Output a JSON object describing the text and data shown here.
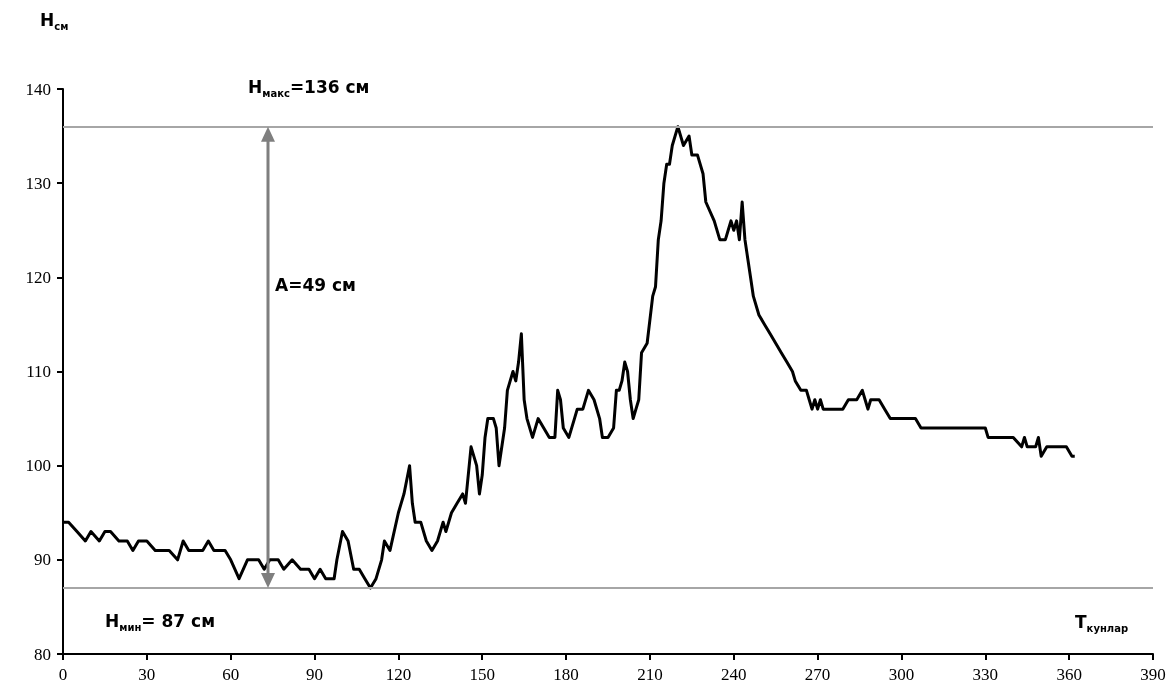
{
  "chart_data": {
    "type": "line",
    "xlabel": "T$_{кунлар}$",
    "ylabel": "H$_{см}$",
    "marker": "none",
    "grid": false,
    "xlim": [
      0,
      390
    ],
    "xticks": [
      0,
      30,
      60,
      90,
      120,
      150,
      180,
      210,
      240,
      270,
      300,
      330,
      360,
      390
    ],
    "ylim": [
      80,
      140
    ],
    "yticks": [
      80,
      90,
      100,
      110,
      120,
      130,
      140
    ],
    "ref_lines": [
      {
        "axis": "y",
        "value": 136,
        "label": "H$_{макс}$=136 см",
        "color": "#a6a6a6"
      },
      {
        "axis": "y",
        "value": 87,
        "label": "H$_{мин}$= 87 см",
        "color": "#a6a6a6"
      }
    ],
    "annotations": [
      "A=49 см"
    ],
    "series": [
      {
        "color": "#000000",
        "x": [
          0,
          2,
          5,
          8,
          10,
          13,
          15,
          17,
          20,
          23,
          25,
          27,
          30,
          33,
          38,
          41,
          43,
          45,
          50,
          52,
          54,
          58,
          60,
          63,
          66,
          70,
          72,
          74,
          77,
          79,
          82,
          85,
          88,
          90,
          92,
          94,
          97,
          98,
          100,
          102,
          104,
          106,
          108,
          110,
          112,
          114,
          115,
          117,
          120,
          122,
          124,
          125,
          126,
          128,
          130,
          132,
          134,
          136,
          137,
          139,
          141,
          143,
          144,
          145,
          146,
          148,
          149,
          150,
          151,
          152,
          154,
          155,
          156,
          158,
          159,
          160,
          161,
          162,
          163,
          164,
          165,
          166,
          168,
          170,
          172,
          174,
          176,
          177,
          178,
          179,
          181,
          183,
          184,
          186,
          188,
          190,
          192,
          193,
          195,
          197,
          198,
          199,
          200,
          201,
          202,
          203,
          204,
          205,
          206,
          207,
          209,
          211,
          212,
          213,
          214,
          215,
          216,
          217,
          218,
          220,
          222,
          224,
          225,
          227,
          229,
          230,
          233,
          235,
          237,
          238,
          239,
          240,
          241,
          242,
          243,
          244,
          245,
          246,
          247,
          249,
          251,
          253,
          255,
          257,
          259,
          261,
          262,
          264,
          266,
          267,
          268,
          269,
          270,
          271,
          272,
          275,
          279,
          281,
          284,
          286,
          287,
          288,
          289,
          292,
          294,
          296,
          305,
          307,
          330,
          331,
          340,
          343,
          344,
          345,
          348,
          349,
          350,
          352,
          359,
          361,
          362
        ],
        "values": [
          94,
          94,
          93,
          92,
          93,
          92,
          93,
          93,
          92,
          92,
          91,
          92,
          92,
          91,
          91,
          90,
          92,
          91,
          91,
          92,
          91,
          91,
          90,
          88,
          90,
          90,
          89,
          90,
          90,
          89,
          90,
          89,
          89,
          88,
          89,
          88,
          88,
          90,
          93,
          92,
          89,
          89,
          88,
          87,
          88,
          90,
          92,
          91,
          95,
          97,
          100,
          96,
          94,
          94,
          92,
          91,
          92,
          94,
          93,
          95,
          96,
          97,
          96,
          99,
          102,
          100,
          97,
          99,
          103,
          105,
          105,
          104,
          100,
          104,
          108,
          109,
          110,
          109,
          111,
          114,
          107,
          105,
          103,
          105,
          104,
          103,
          103,
          108,
          107,
          104,
          103,
          105,
          106,
          106,
          108,
          107,
          105,
          103,
          103,
          104,
          108,
          108,
          109,
          111,
          110,
          107,
          105,
          106,
          107,
          112,
          113,
          118,
          119,
          124,
          126,
          130,
          132,
          132,
          134,
          136,
          134,
          135,
          133,
          133,
          131,
          128,
          126,
          124,
          124,
          125,
          126,
          125,
          126,
          124,
          128,
          124,
          122,
          120,
          118,
          116,
          115,
          114,
          113,
          112,
          111,
          110,
          109,
          108,
          108,
          107,
          106,
          107,
          106,
          107,
          106,
          106,
          106,
          107,
          107,
          108,
          107,
          106,
          107,
          107,
          106,
          105,
          105,
          104,
          104,
          103,
          103,
          102,
          103,
          102,
          102,
          103,
          101,
          102,
          102,
          101,
          101
        ]
      }
    ]
  }
}
